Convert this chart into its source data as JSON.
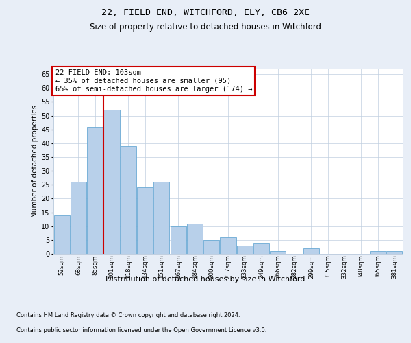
{
  "title1": "22, FIELD END, WITCHFORD, ELY, CB6 2XE",
  "title2": "Size of property relative to detached houses in Witchford",
  "xlabel": "Distribution of detached houses by size in Witchford",
  "ylabel": "Number of detached properties",
  "categories": [
    "52sqm",
    "68sqm",
    "85sqm",
    "101sqm",
    "118sqm",
    "134sqm",
    "151sqm",
    "167sqm",
    "184sqm",
    "200sqm",
    "217sqm",
    "233sqm",
    "249sqm",
    "266sqm",
    "282sqm",
    "299sqm",
    "315sqm",
    "332sqm",
    "348sqm",
    "365sqm",
    "381sqm"
  ],
  "values": [
    14,
    26,
    46,
    52,
    39,
    24,
    26,
    10,
    11,
    5,
    6,
    3,
    4,
    1,
    0,
    2,
    0,
    0,
    0,
    1,
    1
  ],
  "bar_color": "#b8d0ea",
  "bar_edge_color": "#6aaad4",
  "highlight_index": 3,
  "vline_color": "#cc0000",
  "annotation_text": "22 FIELD END: 103sqm\n← 35% of detached houses are smaller (95)\n65% of semi-detached houses are larger (174) →",
  "annotation_box_color": "#ffffff",
  "annotation_box_edge": "#cc0000",
  "ylim": [
    0,
    67
  ],
  "yticks": [
    0,
    5,
    10,
    15,
    20,
    25,
    30,
    35,
    40,
    45,
    50,
    55,
    60,
    65
  ],
  "footer1": "Contains HM Land Registry data © Crown copyright and database right 2024.",
  "footer2": "Contains public sector information licensed under the Open Government Licence v3.0.",
  "bg_color": "#e8eef7",
  "plot_bg_color": "#ffffff",
  "grid_color": "#c0cfe0"
}
